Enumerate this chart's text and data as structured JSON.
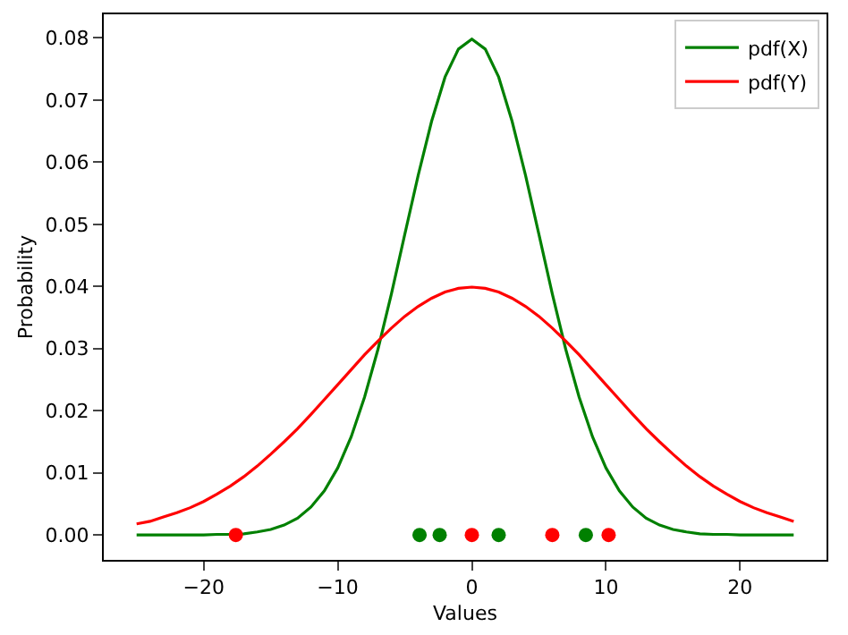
{
  "chart_data": {
    "type": "line",
    "xlabel": "Values",
    "ylabel": "Probability",
    "x": [
      -25,
      -24,
      -23,
      -22,
      -21,
      -20,
      -19,
      -18,
      -17,
      -16,
      -15,
      -14,
      -13,
      -12,
      -11,
      -10,
      -9,
      -8,
      -7,
      -6,
      -5,
      -4,
      -3,
      -2,
      -1,
      0,
      1,
      2,
      3,
      4,
      5,
      6,
      7,
      8,
      9,
      10,
      11,
      12,
      13,
      14,
      15,
      16,
      17,
      18,
      19,
      20,
      21,
      22,
      23,
      24
    ],
    "series": [
      {
        "name": "pdf(X)",
        "color": "#008000",
        "values": [
          0,
          0,
          0,
          0,
          0,
          0,
          0.0001,
          0.0001,
          0.0002,
          0.0005,
          0.0009,
          0.0016,
          0.0027,
          0.0045,
          0.0071,
          0.0108,
          0.0158,
          0.0222,
          0.0299,
          0.0388,
          0.0484,
          0.0579,
          0.0666,
          0.0737,
          0.0782,
          0.0798,
          0.0782,
          0.0737,
          0.0666,
          0.0579,
          0.0484,
          0.0388,
          0.0299,
          0.0222,
          0.0158,
          0.0108,
          0.0071,
          0.0045,
          0.0027,
          0.0016,
          0.0009,
          0.0005,
          0.0002,
          0.0001,
          0.0001,
          0,
          0,
          0,
          0,
          0
        ]
      },
      {
        "name": "pdf(Y)",
        "color": "#ff0000",
        "values": [
          0.0018,
          0.0022,
          0.0029,
          0.0036,
          0.0044,
          0.0054,
          0.0066,
          0.0079,
          0.0094,
          0.0111,
          0.013,
          0.015,
          0.0171,
          0.0194,
          0.0218,
          0.0242,
          0.0266,
          0.029,
          0.0312,
          0.0333,
          0.0352,
          0.0368,
          0.0381,
          0.0391,
          0.0397,
          0.0399,
          0.0397,
          0.0391,
          0.0381,
          0.0368,
          0.0352,
          0.0333,
          0.0312,
          0.029,
          0.0266,
          0.0242,
          0.0218,
          0.0194,
          0.0171,
          0.015,
          0.013,
          0.0111,
          0.0094,
          0.0079,
          0.0066,
          0.0054,
          0.0044,
          0.0036,
          0.0029,
          0.0022
        ]
      },
      {
        "type": "scatter",
        "color": "#008000",
        "marker": "circle",
        "x": [
          -3.9,
          -2.4,
          2.0,
          8.5
        ],
        "values": [
          0,
          0,
          0,
          0
        ]
      },
      {
        "type": "scatter",
        "color": "#ff0000",
        "marker": "circle",
        "x": [
          -17.6,
          0,
          6.0,
          10.2
        ],
        "values": [
          0,
          0,
          0,
          0
        ]
      }
    ],
    "xlim": [
      -27.45,
      26.45
    ],
    "xticks": [
      {
        "value": -20,
        "label": "−20"
      },
      {
        "value": -10,
        "label": "−10"
      },
      0,
      10,
      20
    ],
    "ylim": [
      -0.004,
      0.0838
    ],
    "yticks": [
      {
        "value": 0,
        "label": "0.00"
      },
      {
        "value": 0.01,
        "label": "0.01"
      },
      {
        "value": 0.02,
        "label": "0.02"
      },
      {
        "value": 0.03,
        "label": "0.03"
      },
      {
        "value": 0.04,
        "label": "0.04"
      },
      {
        "value": 0.05,
        "label": "0.05"
      },
      {
        "value": 0.06,
        "label": "0.06"
      },
      {
        "value": 0.07,
        "label": "0.07"
      },
      {
        "value": 0.08,
        "label": "0.08"
      }
    ],
    "legend": "top right"
  }
}
